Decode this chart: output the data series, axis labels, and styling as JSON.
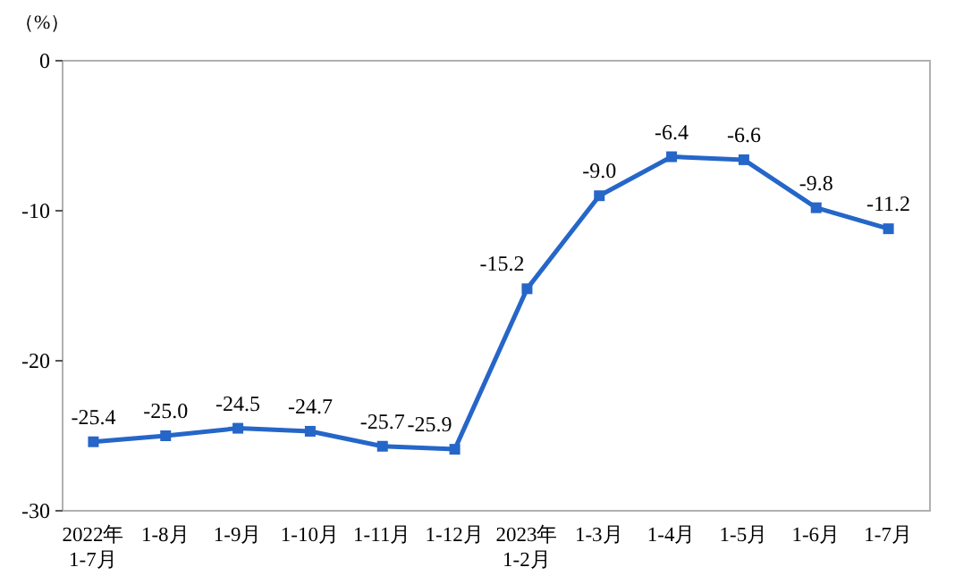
{
  "chart_data": {
    "type": "line",
    "ylabel": "（%）",
    "categories": [
      "2022年\n1-7月",
      "1-8月",
      "1-9月",
      "1-10月",
      "1-11月",
      "1-12月",
      "2023年\n1-2月",
      "1-3月",
      "1-4月",
      "1-5月",
      "1-6月",
      "1-7月"
    ],
    "series": [
      {
        "color": "#2566c8",
        "values": [
          -25.4,
          -25.0,
          -24.5,
          -24.7,
          -25.7,
          -25.9,
          -15.2,
          -9.0,
          -6.4,
          -6.6,
          -9.8,
          -11.2
        ],
        "value_labels": [
          "-25.4",
          "-25.0",
          "-24.5",
          "-24.7",
          "-25.7",
          "-25.9",
          "-15.2",
          "-9.0",
          "-6.4",
          "-6.6",
          "-9.8",
          "-11.2"
        ]
      }
    ],
    "ylim": [
      -30,
      0
    ],
    "yticks": [
      0,
      -10,
      -20,
      -30
    ],
    "marker": "square"
  }
}
